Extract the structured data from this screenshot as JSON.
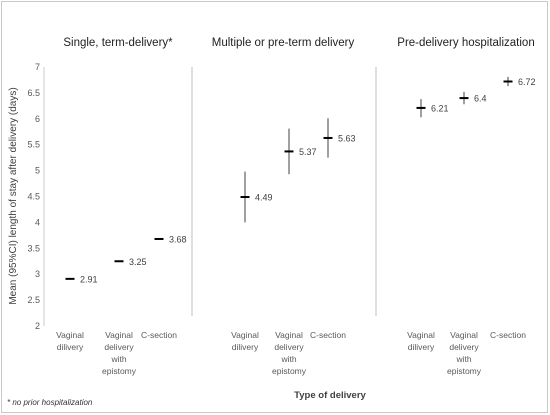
{
  "chart_data": {
    "type": "scatter",
    "ylabel": "Mean (95%CI) length of stay after delivery (days)",
    "xlabel": "Type of delivery",
    "footnote": "* no prior hospitalization",
    "ylim": [
      2,
      7
    ],
    "yticks": [
      "2",
      "2.5",
      "3",
      "3.5",
      "4",
      "4.5",
      "5",
      "5.5",
      "6",
      "6.5",
      "7"
    ],
    "categories": [
      [
        "Vaginal",
        "dilivery"
      ],
      [
        "Vaginal",
        "delivery",
        "with",
        "epistomy"
      ],
      [
        "C-section"
      ]
    ],
    "panels": [
      {
        "title": "Single, term-delivery*",
        "points": [
          {
            "category": "Vaginal dilivery",
            "mean": 2.91,
            "ci_low": 2.91,
            "ci_high": 2.91,
            "label": "2.91"
          },
          {
            "category": "Vaginal delivery with epistomy",
            "mean": 3.25,
            "ci_low": 3.25,
            "ci_high": 3.25,
            "label": "3.25"
          },
          {
            "category": "C-section",
            "mean": 3.68,
            "ci_low": 3.68,
            "ci_high": 3.68,
            "label": "3.68"
          }
        ]
      },
      {
        "title": "Multiple or pre-term delivery",
        "points": [
          {
            "category": "Vaginal dilivery",
            "mean": 4.49,
            "ci_low": 4.0,
            "ci_high": 4.98,
            "label": "4.49"
          },
          {
            "category": "Vaginal delivery with epistomy",
            "mean": 5.37,
            "ci_low": 4.93,
            "ci_high": 5.81,
            "label": "5.37"
          },
          {
            "category": "C-section",
            "mean": 5.63,
            "ci_low": 5.25,
            "ci_high": 6.01,
            "label": "5.63"
          }
        ]
      },
      {
        "title": "Pre-delivery hospitalization",
        "points": [
          {
            "category": "Vaginal dilivery",
            "mean": 6.21,
            "ci_low": 6.03,
            "ci_high": 6.38,
            "label": "6.21"
          },
          {
            "category": "Vaginal delivery with epistomy",
            "mean": 6.4,
            "ci_low": 6.28,
            "ci_high": 6.52,
            "label": "6.4"
          },
          {
            "category": "C-section",
            "mean": 6.72,
            "ci_low": 6.63,
            "ci_high": 6.81,
            "label": "6.72"
          }
        ]
      }
    ],
    "grid": false,
    "colors": {
      "marker": "#000000",
      "ci": "#404040",
      "divider": "#bfbfbf",
      "axis": "#bfbfbf"
    }
  }
}
